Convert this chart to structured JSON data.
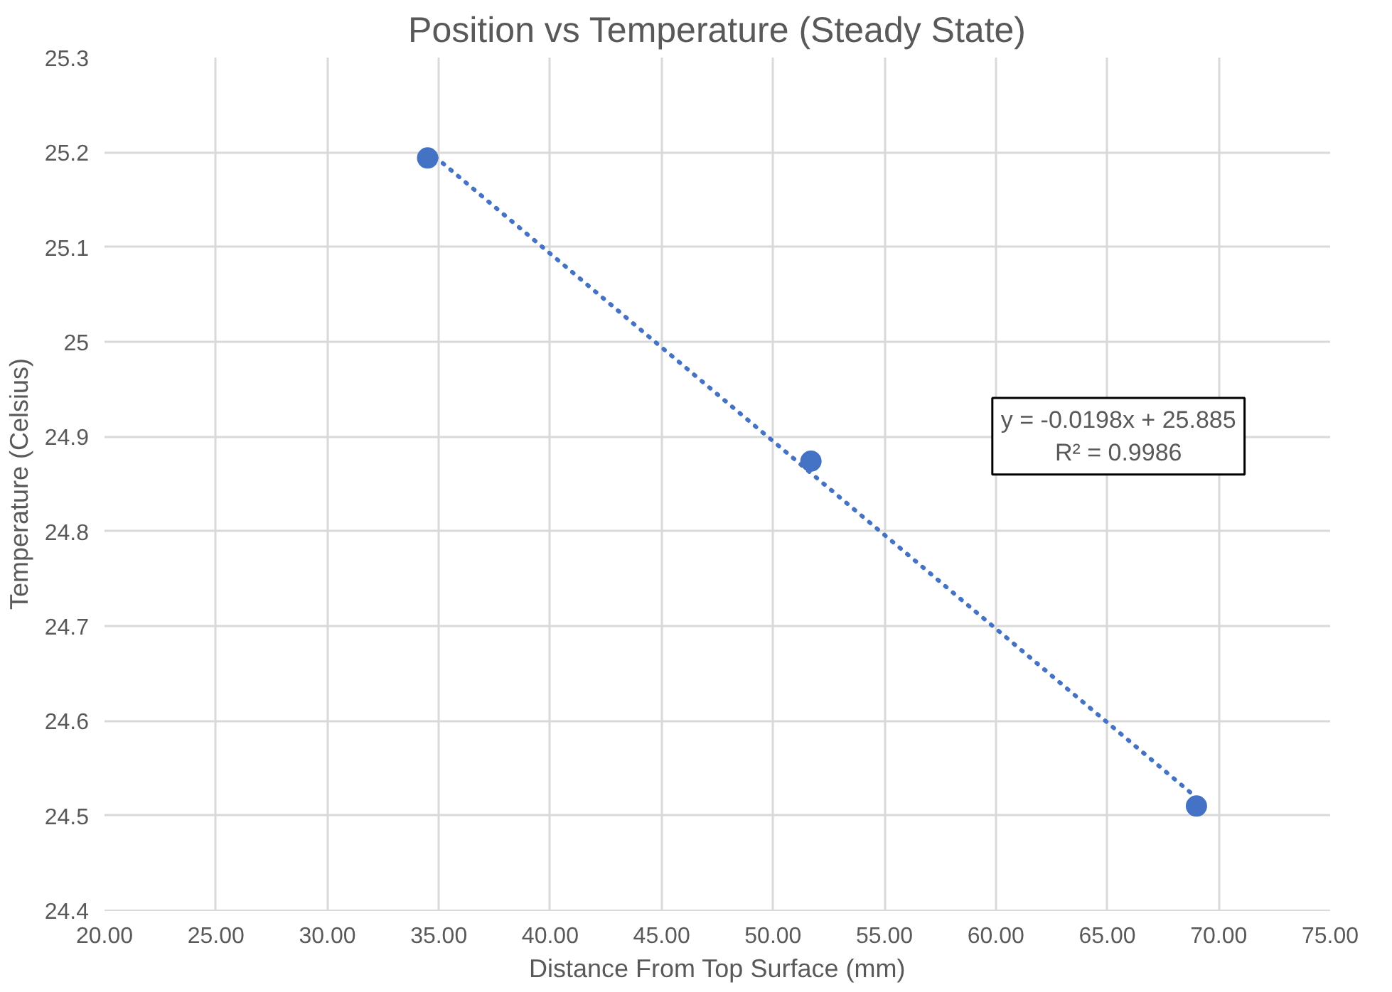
{
  "chart_data": {
    "type": "scatter",
    "title": "Position vs Temperature (Steady State)",
    "xlabel": "Distance From Top Surface (mm)",
    "ylabel": "Temperature (Celsius)",
    "series": [
      {
        "color": "#4472c4",
        "x": [
          34.5,
          51.7,
          69.0
        ],
        "values": [
          25.194,
          24.874,
          24.51
        ],
        "marker": "circle"
      },
      {
        "type": "line",
        "color": "#4472c4",
        "x": [
          34.5,
          69.0
        ],
        "values": [
          25.202,
          24.519
        ],
        "marker": "none",
        "line_style": "dotted"
      }
    ],
    "annotations": [
      "y = -0.0198x + 25.885",
      "R² = 0.9986"
    ],
    "xlim": [
      20,
      75
    ],
    "xticks": [
      {
        "value": 20,
        "label": "20.00"
      },
      {
        "value": 25,
        "label": "25.00"
      },
      {
        "value": 30,
        "label": "30.00"
      },
      {
        "value": 35,
        "label": "35.00"
      },
      {
        "value": 40,
        "label": "40.00"
      },
      {
        "value": 45,
        "label": "45.00"
      },
      {
        "value": 50,
        "label": "50.00"
      },
      {
        "value": 55,
        "label": "55.00"
      },
      {
        "value": 60,
        "label": "60.00"
      },
      {
        "value": 65,
        "label": "65.00"
      },
      {
        "value": 70,
        "label": "70.00"
      },
      {
        "value": 75,
        "label": "75.00"
      }
    ],
    "ylim": [
      24.4,
      25.3
    ],
    "yticks": [
      24.4,
      24.5,
      24.6,
      24.7,
      24.8,
      24.9,
      {
        "value": 25,
        "label": "25"
      },
      25.1,
      25.2,
      25.3
    ],
    "grid": true
  }
}
